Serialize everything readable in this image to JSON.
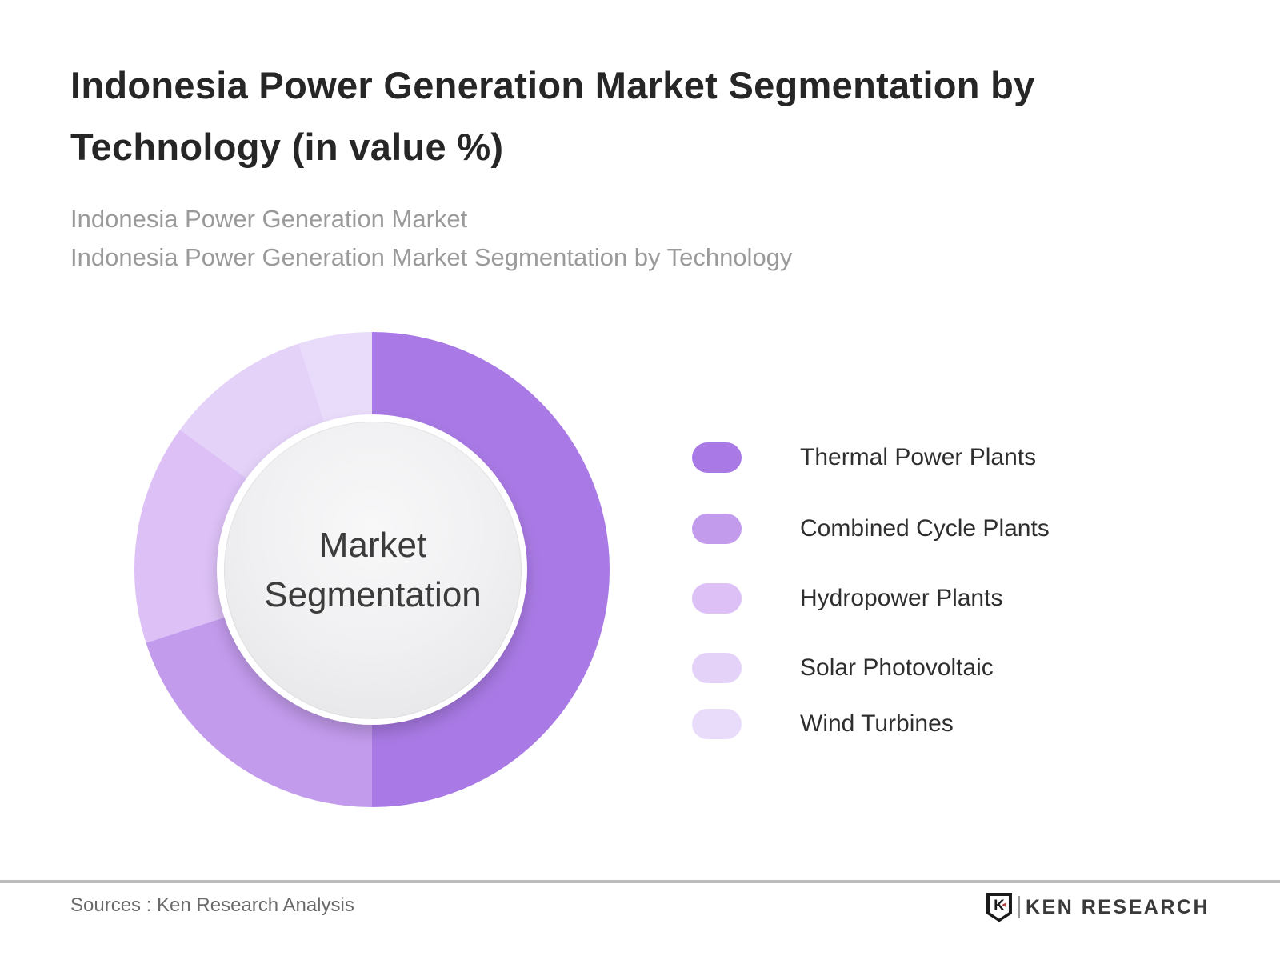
{
  "header": {
    "title_lines": [
      "Indonesia Power Generation Market Segmentation by",
      "Technology (in value %)"
    ],
    "subtitle_lines": [
      "Indonesia Power Generation Market",
      "Indonesia Power Generation Market Segmentation by Technology"
    ]
  },
  "chart_data": {
    "type": "pie",
    "variant": "donut",
    "center_label_lines": [
      "Market",
      "Segmentation"
    ],
    "categories": [
      "Thermal Power Plants",
      "Combined Cycle Plants",
      "Hydropower Plants",
      "Solar Photovoltaic",
      "Wind Turbines"
    ],
    "values": [
      50,
      20,
      15,
      10,
      5
    ],
    "unit": "%",
    "colors": [
      "#a97ae5",
      "#c39bed",
      "#dcc0f6",
      "#e4d2f8",
      "#e9dcfa"
    ],
    "start_angle_deg": 0,
    "direction": "clockwise",
    "legend_position": "right",
    "data_labels_shown": false
  },
  "footer": {
    "sources": "Sources : Ken Research Analysis",
    "brand": {
      "icon_letter": "K",
      "arrow_glyph": "◄",
      "name": "KEN RESEARCH",
      "accent_color": "#b04343"
    }
  }
}
